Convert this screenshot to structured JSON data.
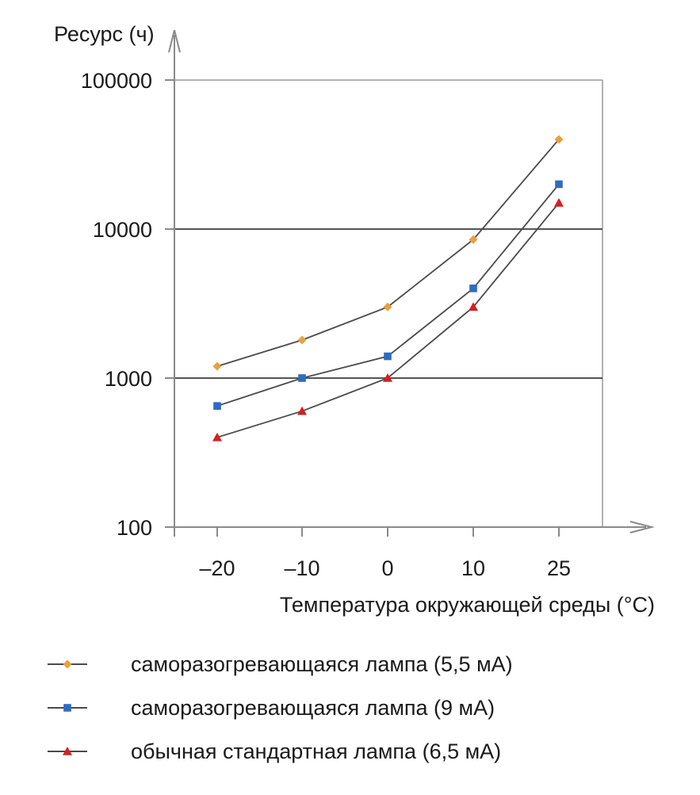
{
  "chart_data": {
    "type": "line",
    "ylabel": "Ресурс (ч)",
    "xlabel": "Температура окружающей среды (°C)",
    "y_scale": "log",
    "ylim": [
      100,
      100000
    ],
    "y_ticks": [
      {
        "value": 100000,
        "label": "100000"
      },
      {
        "value": 10000,
        "label": "10000"
      },
      {
        "value": 1000,
        "label": "1000"
      },
      {
        "value": 100,
        "label": "100"
      }
    ],
    "categories": [
      "–20",
      "–10",
      "0",
      "10",
      "25"
    ],
    "grid": "horizontal at 1000 and 10000",
    "legend_position": "bottom",
    "series": [
      {
        "name": "саморазогревающаяся лампа (5,5 мА)",
        "marker": "diamond",
        "color": "#e8a040",
        "values": [
          1200,
          1800,
          3000,
          8500,
          40000
        ]
      },
      {
        "name": "саморазогревающаяся лампа (9 мА)",
        "marker": "square",
        "color": "#2f6bbf",
        "values": [
          650,
          1000,
          1400,
          4000,
          20000
        ]
      },
      {
        "name": "обычная стандартная лампа (6,5 мА)",
        "marker": "triangle",
        "color": "#d42020",
        "values": [
          400,
          600,
          1000,
          3000,
          15000
        ]
      }
    ],
    "line_color": "#4a4a4a"
  }
}
